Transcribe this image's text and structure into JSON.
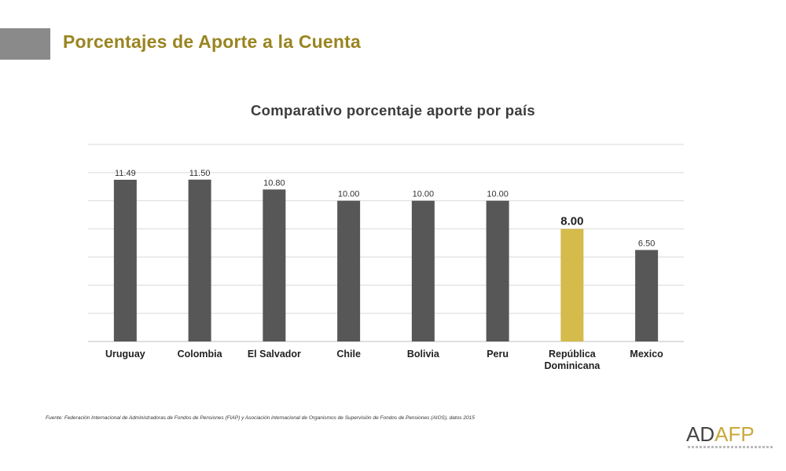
{
  "slide": {
    "title": "Porcentajes de Aporte a la Cuenta",
    "footnote": "Fuente: Federación Internacional de Administradoras de Fondos de Pensiones (FIAP) y  Asociación internacional de Organismos de Supervisión de Fondos de Pensiones (AIOS), datos 2015",
    "logo_main": "AD",
    "logo_accent": "AFP"
  },
  "colors": {
    "bar": "#575757",
    "highlight": "#d4bb4c",
    "grid": "#d9d9d9",
    "title_accent": "#9a8420"
  },
  "chart_data": {
    "type": "bar",
    "title": "Comparativo porcentaje aporte por país",
    "xlabel": "",
    "ylabel": "",
    "ylim": [
      0,
      14
    ],
    "grid": true,
    "categories": [
      "Uruguay",
      "Colombia",
      "El Salvador",
      "Chile",
      "Bolivia",
      "Peru",
      "República Dominicana",
      "Mexico"
    ],
    "values": [
      11.49,
      11.5,
      10.8,
      10.0,
      10.0,
      10.0,
      8.0,
      6.5
    ],
    "value_labels": [
      "11.49",
      "11.50",
      "10.80",
      "10.00",
      "10.00",
      "10.00",
      "8.00",
      "6.50"
    ],
    "highlight_category": "República Dominicana"
  }
}
